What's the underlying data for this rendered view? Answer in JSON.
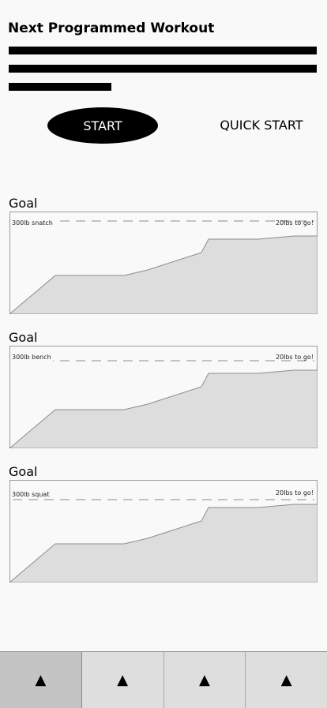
{
  "header": {
    "title": "Next Programmed Workout"
  },
  "actions": {
    "start_label": "START",
    "quick_start_label": "QUICK START"
  },
  "goals": [
    {
      "heading": "Goal",
      "target_label": "300lb snatch",
      "remaining_label": "20lbs to go!"
    },
    {
      "heading": "Goal",
      "target_label": "300lb bench",
      "remaining_label": "20lbs to go!"
    },
    {
      "heading": "Goal",
      "target_label": "300lb squat",
      "remaining_label": "20lbs to go!"
    }
  ],
  "tab_bar": {
    "tabs": [
      {
        "icon": "triangle-up-icon",
        "glyph": "▲",
        "selected": true
      },
      {
        "icon": "triangle-up-icon",
        "glyph": "▲",
        "selected": false
      },
      {
        "icon": "triangle-up-icon",
        "glyph": "▲",
        "selected": false
      },
      {
        "icon": "triangle-up-icon",
        "glyph": "▲",
        "selected": false
      }
    ]
  },
  "colors": {
    "background": "#f9f9f9",
    "tab_bar": "#dedede",
    "tab_selected": "#c4c4c4",
    "chart_fill": "#d9d9d9",
    "chart_stroke": "#8c8c8c"
  }
}
